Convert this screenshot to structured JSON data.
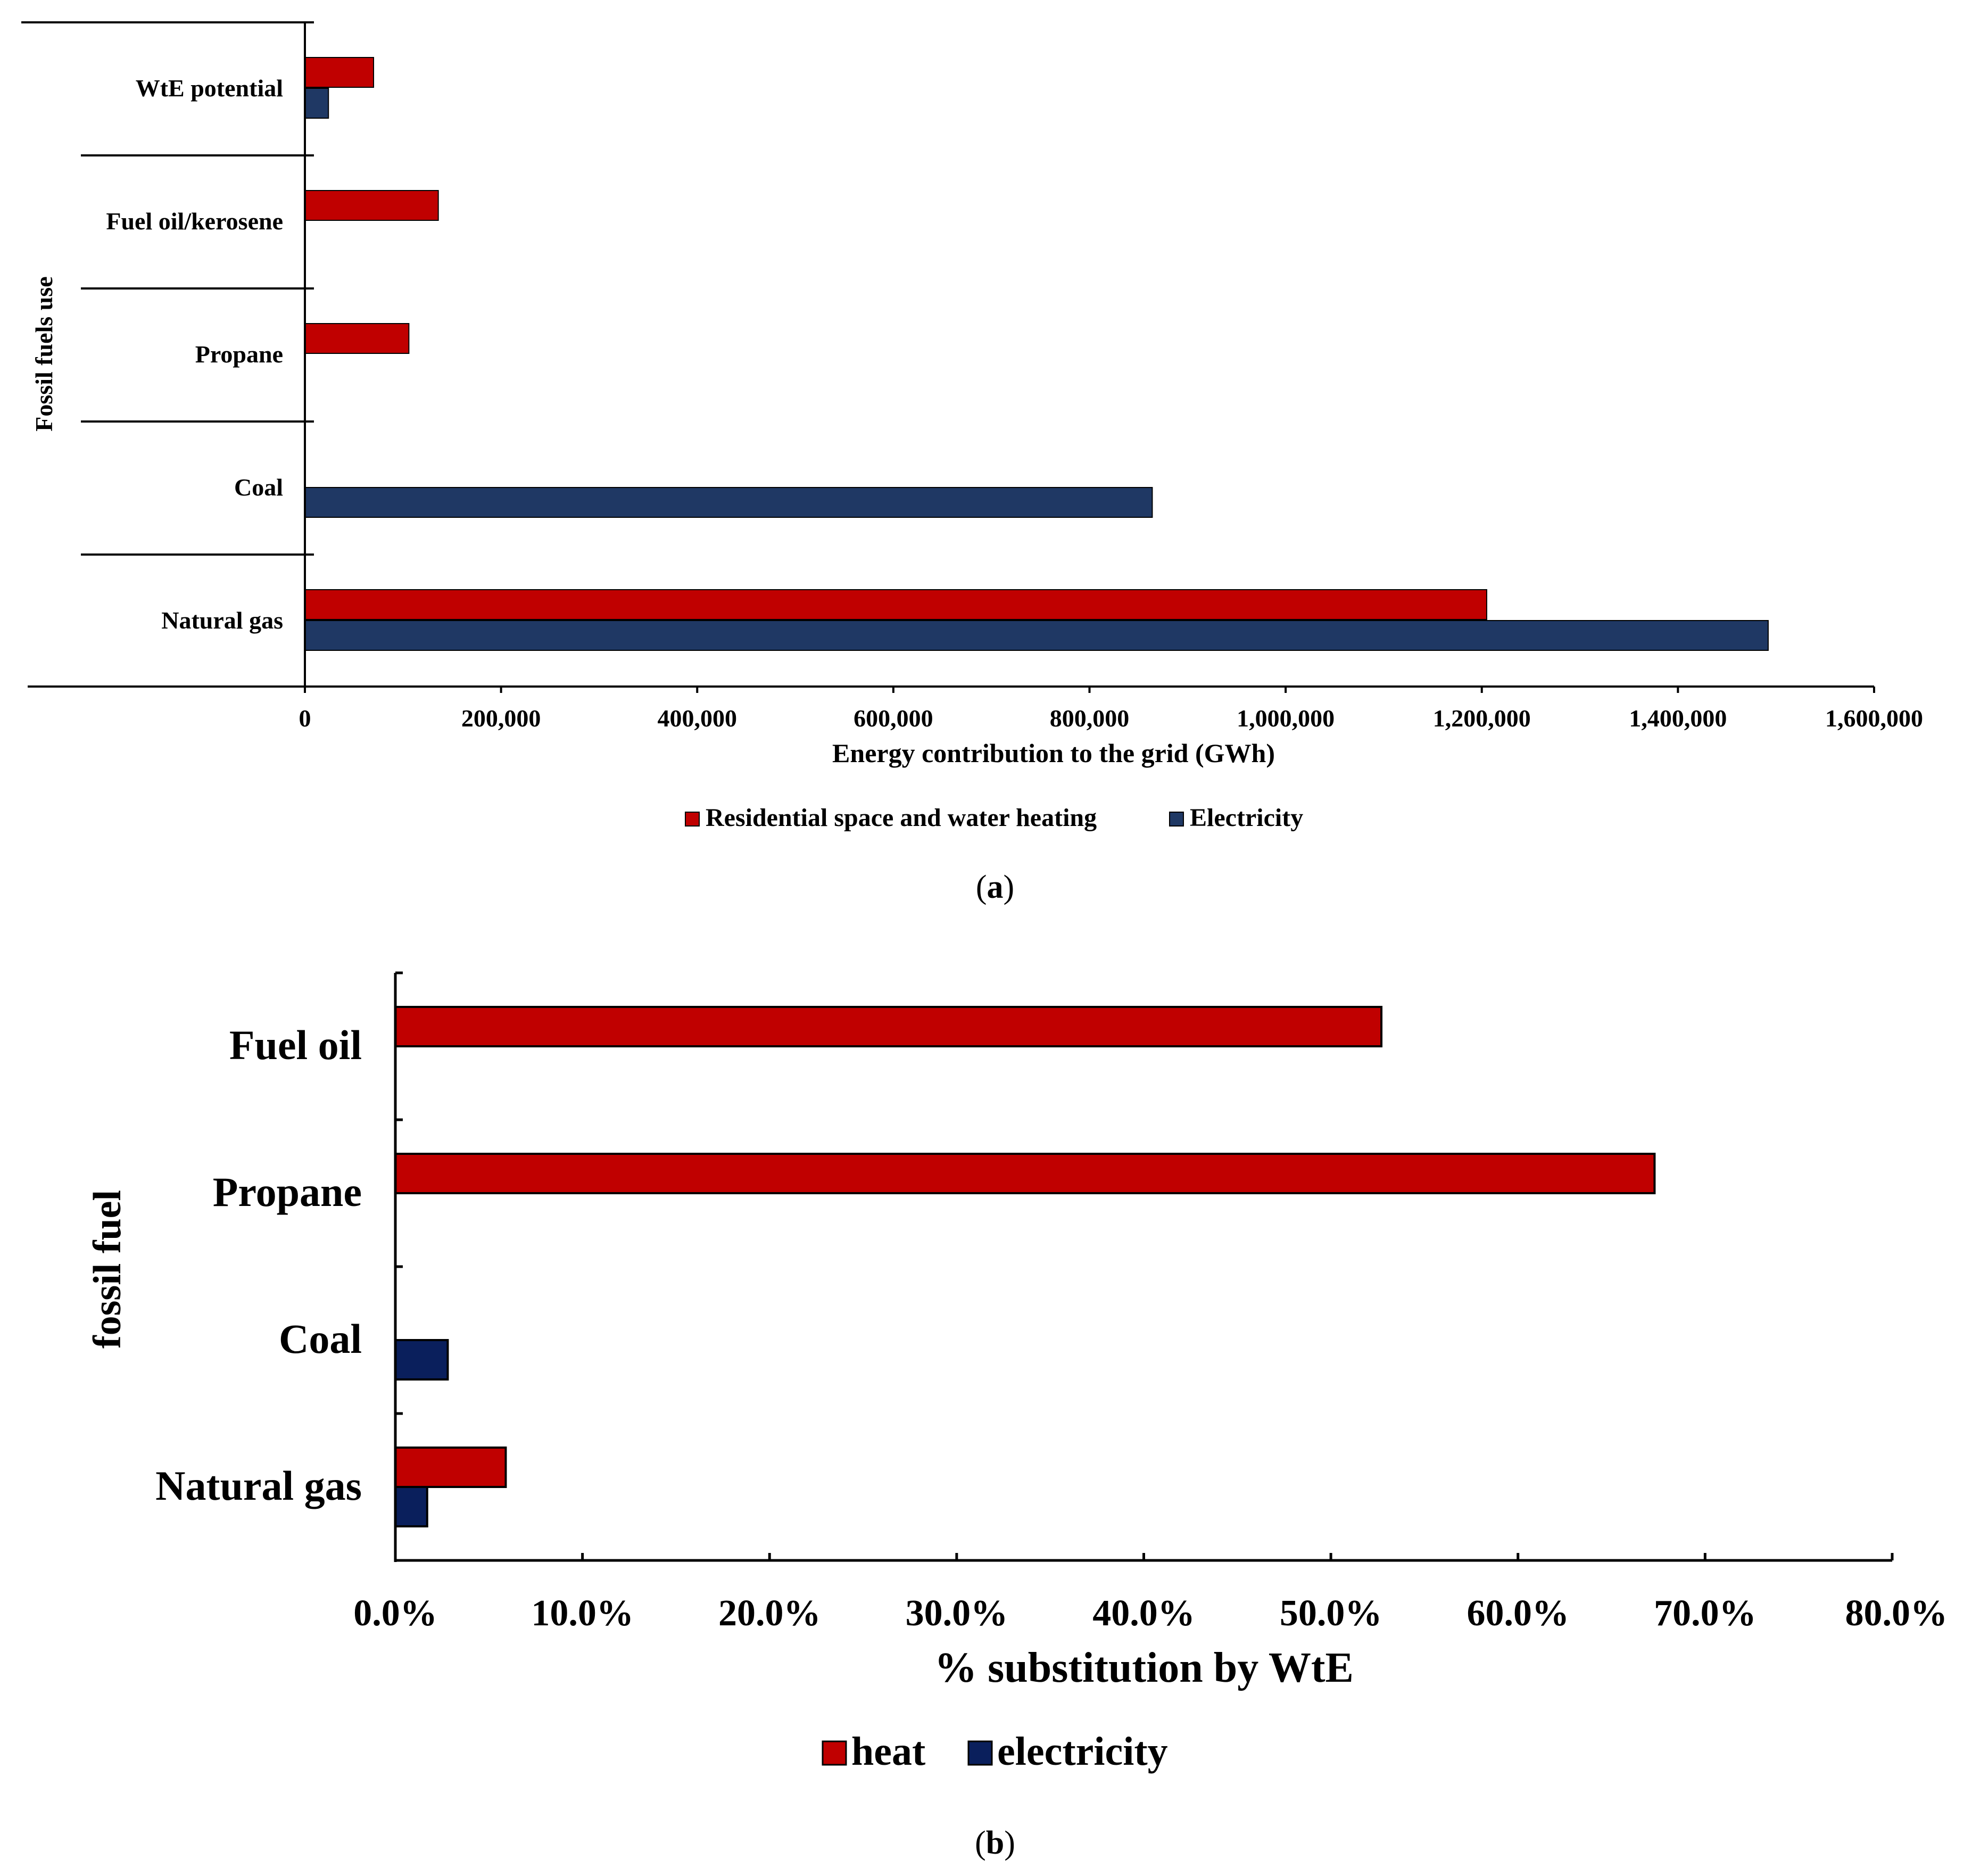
{
  "colors": {
    "heat_a": "#C00000",
    "elec_a": "#1F3864",
    "heat_b": "#C00000",
    "elec_b": "#0A1F5C"
  },
  "chart_data": [
    {
      "type": "bar",
      "orientation": "horizontal",
      "panel_label": "a",
      "title": "",
      "ylabel": "Fossil fuels use",
      "xlabel": "Energy contribution to the grid (GWh)",
      "categories": [
        "WtE potential",
        "Fuel oil/kerosene",
        "Propane",
        "Coal",
        "Natural gas"
      ],
      "series": [
        {
          "name": "Residential space and water heating",
          "values": [
            70000,
            136000,
            106000,
            0,
            1205000
          ]
        },
        {
          "name": "Electricity",
          "values": [
            24000,
            0,
            0,
            864000,
            1492000
          ]
        }
      ],
      "xlim": [
        0,
        1600000
      ],
      "xticks": [
        "0",
        "200,000",
        "400,000",
        "600,000",
        "800,000",
        "1,000,000",
        "1,200,000",
        "1,400,000",
        "1,600,000"
      ],
      "legend_position": "bottom"
    },
    {
      "type": "bar",
      "orientation": "horizontal",
      "panel_label": "b",
      "title": "",
      "ylabel": "fossil fuel",
      "xlabel": "% substitution by WtE",
      "categories": [
        "Fuel oil",
        "Propane",
        "Coal",
        "Natural gas"
      ],
      "series": [
        {
          "name": "heat",
          "values": [
            52.7,
            67.3,
            0,
            5.9
          ]
        },
        {
          "name": "electricity",
          "values": [
            0,
            0,
            2.8,
            1.7
          ]
        }
      ],
      "xlim": [
        0,
        80
      ],
      "xticks": [
        "0.0%",
        "10.0%",
        "20.0%",
        "30.0%",
        "40.0%",
        "50.0%",
        "60.0%",
        "70.0%",
        "80.0%"
      ],
      "legend_position": "bottom"
    }
  ]
}
